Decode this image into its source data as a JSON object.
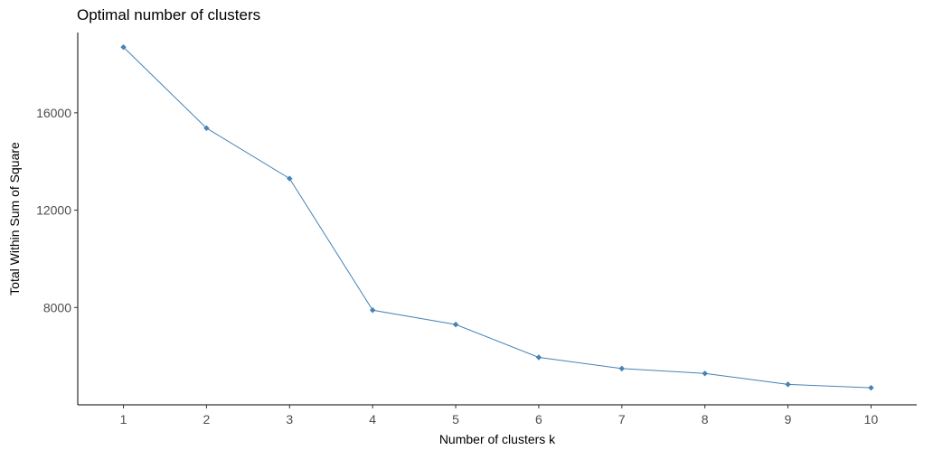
{
  "chart_data": {
    "type": "line",
    "title": "Optimal number of clusters",
    "xlabel": "Number of clusters k",
    "ylabel": "Total Within Sum of Square",
    "x": [
      1,
      2,
      3,
      4,
      5,
      6,
      7,
      8,
      9,
      10
    ],
    "series": [
      {
        "values": [
          18700,
          15370,
          13300,
          7890,
          7300,
          5950,
          5490,
          5290,
          4840,
          4700
        ]
      }
    ],
    "xticks": [
      "1",
      "2",
      "3",
      "4",
      "5",
      "6",
      "7",
      "8",
      "9",
      "10"
    ],
    "yticks": [
      8000,
      12000,
      16000
    ],
    "xlim": [
      0.45,
      10.55
    ],
    "ylim": [
      4000,
      19300
    ],
    "grid": false,
    "legend": "none",
    "colors": {
      "line": "#4682b4",
      "point": "#4682b4",
      "axis": "#000000",
      "tick_label": "#4d4d4d"
    }
  }
}
